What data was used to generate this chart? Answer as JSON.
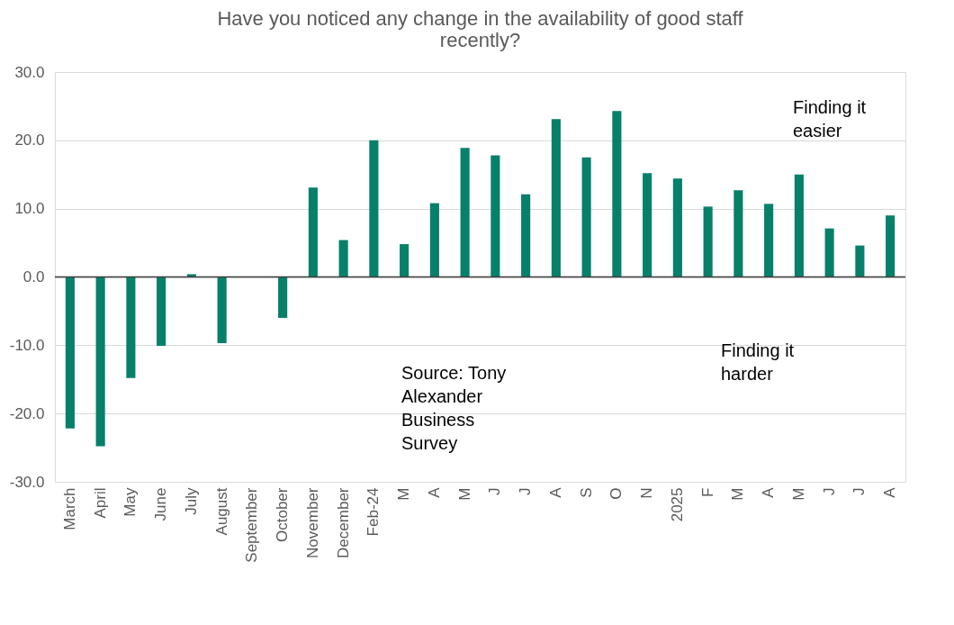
{
  "chart_data": {
    "type": "bar",
    "title": "Have you noticed any change in the availability of good staff\nrecently?",
    "categories": [
      "March",
      "April",
      "May",
      "June",
      "July",
      "August",
      "September",
      "October",
      "November",
      "December",
      "Feb-24",
      "M",
      "A",
      "M",
      "J",
      "J",
      "A",
      "S",
      "O",
      "N",
      "2025",
      "F",
      "M",
      "A",
      "M",
      "J",
      "J",
      "A"
    ],
    "values": [
      -22.2,
      -24.8,
      -14.8,
      -10.1,
      0.4,
      -9.7,
      0,
      -6.0,
      13.1,
      5.4,
      20.0,
      4.8,
      10.8,
      18.9,
      17.8,
      12.1,
      23.1,
      17.5,
      24.3,
      15.2,
      14.4,
      10.3,
      12.7,
      10.7,
      15.0,
      7.1,
      4.6,
      9.0
    ],
    "color": "#07806a",
    "ylim": [
      -30,
      30
    ],
    "yticks": [
      {
        "value": -30,
        "label": "-30.0"
      },
      {
        "value": -20,
        "label": "-20.0"
      },
      {
        "value": -10,
        "label": "-10.0"
      },
      {
        "value": 0,
        "label": "0.0"
      },
      {
        "value": 10,
        "label": "10.0"
      },
      {
        "value": 20,
        "label": "20.0"
      },
      {
        "value": 30,
        "label": "30.0"
      }
    ],
    "grid": "y",
    "annotations": [
      "Finding it\neasier",
      "Finding it\nharder",
      "Source: Tony\nAlexander\nBusiness\nSurvey"
    ]
  }
}
